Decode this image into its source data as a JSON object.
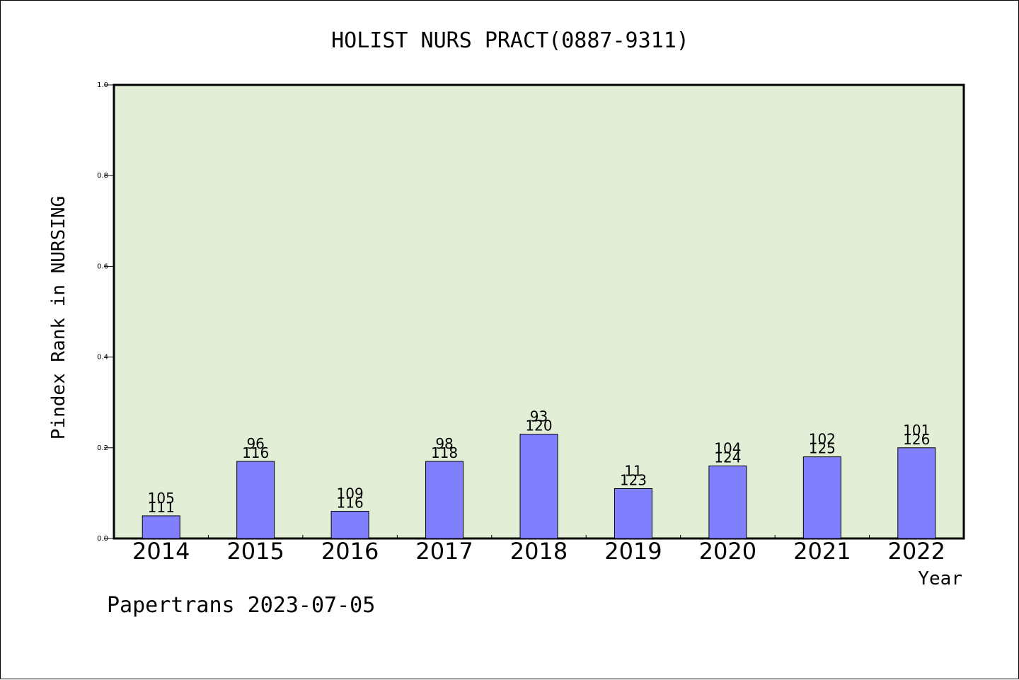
{
  "chart_data": {
    "type": "bar",
    "title": "HOLIST NURS PRACT(0887-9311)",
    "ylabel": "Pindex Rank in NURSING",
    "xlabel": "Year",
    "footer": "Papertrans 2023-07-05",
    "ylim": [
      0,
      1.0
    ],
    "yticks": [
      "0.0",
      "0.2",
      "0.4",
      "0.6",
      "0.8",
      "1.0"
    ],
    "grid": false,
    "categories": [
      "2014",
      "2015",
      "2016",
      "2017",
      "2018",
      "2019",
      "2020",
      "2021",
      "2022"
    ],
    "values": [
      0.05,
      0.17,
      0.06,
      0.17,
      0.23,
      0.11,
      0.16,
      0.18,
      0.2
    ],
    "label_top": [
      "105",
      "96",
      "109",
      "98",
      "93",
      "11",
      "104",
      "102",
      "101"
    ],
    "label_bottom": [
      "111",
      "116",
      "116",
      "118",
      "120",
      "123",
      "124",
      "125",
      "126"
    ],
    "colors": {
      "plot_background": "#e2efd6",
      "bar_fill": "#8080ff",
      "bar_stroke": "#000000",
      "axis": "#000000"
    }
  }
}
